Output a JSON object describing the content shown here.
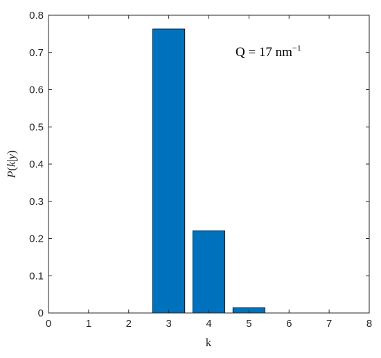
{
  "chart_data": {
    "type": "bar",
    "x": [
      3,
      4,
      5
    ],
    "values": [
      0.763,
      0.221,
      0.014
    ],
    "xlim": [
      0,
      8
    ],
    "ylim": [
      0,
      0.8
    ],
    "xticks": [
      "0",
      "1",
      "2",
      "3",
      "4",
      "5",
      "6",
      "7",
      "8"
    ],
    "yticks": [
      "0",
      "0.1",
      "0.2",
      "0.3",
      "0.4",
      "0.5",
      "0.6",
      "0.7",
      "0.8"
    ],
    "xlabel": "k",
    "ylabel": {
      "P": "P",
      "open": "(",
      "k": "k",
      "bar": "|",
      "y": "y",
      "close": ")"
    },
    "annotation": {
      "prefix": "Q = 17 nm",
      "sup": "−1"
    },
    "bar_color": "#0072BD",
    "bar_edge_color": "#000000",
    "grid": false
  }
}
